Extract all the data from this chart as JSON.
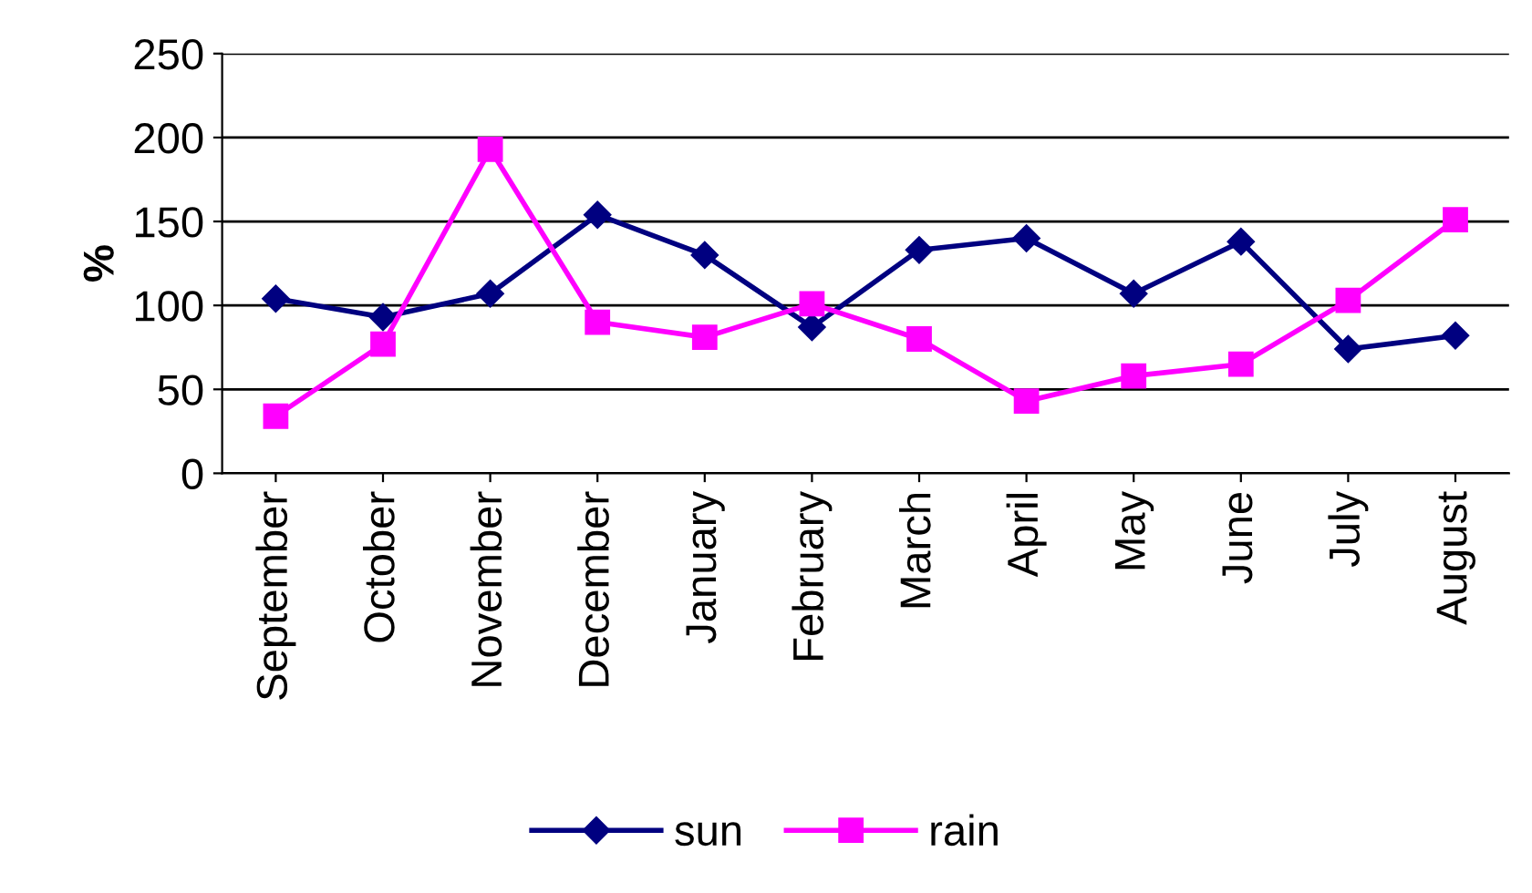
{
  "chart_data": {
    "type": "line",
    "ylabel": "%",
    "categories": [
      "September",
      "October",
      "November",
      "December",
      "January",
      "February",
      "March",
      "April",
      "May",
      "June",
      "July",
      "August"
    ],
    "series": [
      {
        "name": "sun",
        "color": "#000080",
        "marker": "diamond",
        "values": [
          104,
          93,
          107,
          154,
          130,
          87,
          133,
          140,
          107,
          138,
          74,
          82
        ]
      },
      {
        "name": "rain",
        "color": "#ff00ff",
        "marker": "square",
        "values": [
          34,
          77,
          193,
          90,
          81,
          101,
          80,
          43,
          58,
          65,
          103,
          151
        ]
      }
    ],
    "ylim": [
      0,
      250
    ],
    "yticks": [
      0,
      50,
      100,
      150,
      200,
      250
    ],
    "grid": "y",
    "legend": "bottom",
    "line_style": "solid"
  }
}
